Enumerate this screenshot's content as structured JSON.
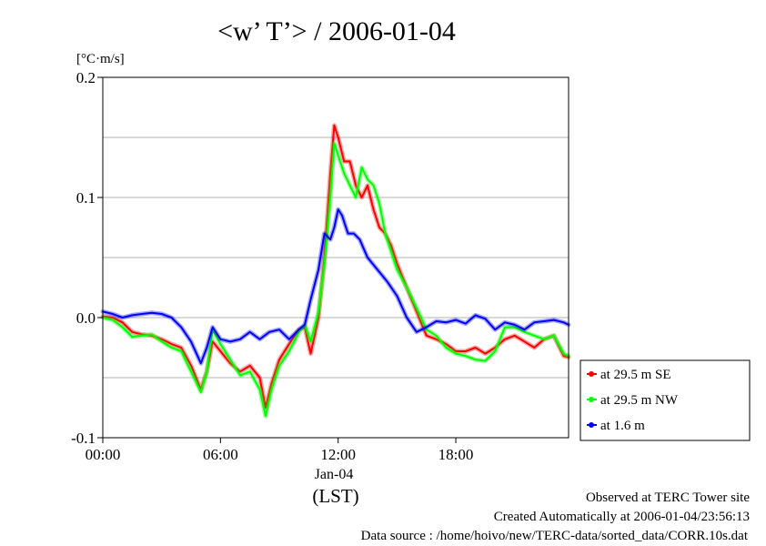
{
  "chart_data": {
    "type": "line",
    "title": "<w’ T’> / 2006-01-04",
    "unit_label": "[°C·m/s]",
    "xlabel": "(LST)",
    "x_date_label": "Jan-04",
    "xlim": [
      0,
      23.75
    ],
    "ylim": [
      -0.1,
      0.2
    ],
    "x_ticks": [
      {
        "value": 0,
        "label": "00:00"
      },
      {
        "value": 6,
        "label": "06:00"
      },
      {
        "value": 12,
        "label": "12:00"
      },
      {
        "value": 18,
        "label": "18:00"
      }
    ],
    "y_ticks": [
      {
        "value": -0.1,
        "label": "-0.1"
      },
      {
        "value": 0.0,
        "label": "0.0"
      },
      {
        "value": 0.1,
        "label": "0.1"
      },
      {
        "value": 0.2,
        "label": "0.2"
      }
    ],
    "y_gridlines": [
      -0.05,
      0.0,
      0.05,
      0.1,
      0.15
    ],
    "grid": true,
    "legend_position": "outside-right-bottom",
    "series": [
      {
        "name": "at 29.5 m SE",
        "color": "#ff0000",
        "points": [
          [
            0,
            0.001
          ],
          [
            0.5,
            0.0
          ],
          [
            1,
            -0.004
          ],
          [
            1.5,
            -0.012
          ],
          [
            2,
            -0.014
          ],
          [
            2.5,
            -0.015
          ],
          [
            3,
            -0.018
          ],
          [
            3.5,
            -0.022
          ],
          [
            4,
            -0.025
          ],
          [
            4.5,
            -0.04
          ],
          [
            5,
            -0.06
          ],
          [
            5.3,
            -0.045
          ],
          [
            5.6,
            -0.02
          ],
          [
            6,
            -0.028
          ],
          [
            6.5,
            -0.038
          ],
          [
            7,
            -0.045
          ],
          [
            7.5,
            -0.04
          ],
          [
            8,
            -0.05
          ],
          [
            8.3,
            -0.075
          ],
          [
            8.6,
            -0.055
          ],
          [
            9,
            -0.035
          ],
          [
            9.5,
            -0.022
          ],
          [
            10,
            -0.01
          ],
          [
            10.3,
            -0.008
          ],
          [
            10.6,
            -0.03
          ],
          [
            11,
            0.0
          ],
          [
            11.3,
            0.05
          ],
          [
            11.6,
            0.12
          ],
          [
            11.8,
            0.16
          ],
          [
            12,
            0.15
          ],
          [
            12.3,
            0.13
          ],
          [
            12.6,
            0.13
          ],
          [
            12.9,
            0.11
          ],
          [
            13.2,
            0.1
          ],
          [
            13.5,
            0.11
          ],
          [
            13.8,
            0.09
          ],
          [
            14.1,
            0.075
          ],
          [
            14.4,
            0.07
          ],
          [
            14.7,
            0.06
          ],
          [
            15,
            0.045
          ],
          [
            15.5,
            0.025
          ],
          [
            16,
            0.005
          ],
          [
            16.5,
            -0.015
          ],
          [
            17,
            -0.018
          ],
          [
            17.5,
            -0.022
          ],
          [
            18,
            -0.028
          ],
          [
            18.5,
            -0.028
          ],
          [
            19,
            -0.025
          ],
          [
            19.5,
            -0.03
          ],
          [
            20,
            -0.025
          ],
          [
            20.5,
            -0.018
          ],
          [
            21,
            -0.015
          ],
          [
            21.5,
            -0.02
          ],
          [
            22,
            -0.025
          ],
          [
            22.5,
            -0.018
          ],
          [
            23,
            -0.015
          ],
          [
            23.5,
            -0.032
          ],
          [
            23.75,
            -0.033
          ]
        ]
      },
      {
        "name": "at 29.5 m NW",
        "color": "#00ff00",
        "points": [
          [
            0,
            0.0
          ],
          [
            0.5,
            -0.002
          ],
          [
            1,
            -0.008
          ],
          [
            1.5,
            -0.016
          ],
          [
            2,
            -0.015
          ],
          [
            2.5,
            -0.014
          ],
          [
            3,
            -0.02
          ],
          [
            3.5,
            -0.025
          ],
          [
            4,
            -0.028
          ],
          [
            4.5,
            -0.045
          ],
          [
            5,
            -0.062
          ],
          [
            5.3,
            -0.045
          ],
          [
            5.6,
            -0.01
          ],
          [
            6,
            -0.022
          ],
          [
            6.5,
            -0.035
          ],
          [
            7,
            -0.048
          ],
          [
            7.5,
            -0.045
          ],
          [
            8,
            -0.06
          ],
          [
            8.3,
            -0.082
          ],
          [
            8.6,
            -0.06
          ],
          [
            9,
            -0.04
          ],
          [
            9.5,
            -0.028
          ],
          [
            10,
            -0.012
          ],
          [
            10.3,
            -0.006
          ],
          [
            10.6,
            -0.02
          ],
          [
            11,
            0.005
          ],
          [
            11.3,
            0.045
          ],
          [
            11.6,
            0.1
          ],
          [
            11.8,
            0.145
          ],
          [
            12,
            0.135
          ],
          [
            12.3,
            0.12
          ],
          [
            12.6,
            0.11
          ],
          [
            12.9,
            0.1
          ],
          [
            13.2,
            0.125
          ],
          [
            13.5,
            0.115
          ],
          [
            13.8,
            0.11
          ],
          [
            14.1,
            0.095
          ],
          [
            14.4,
            0.07
          ],
          [
            14.7,
            0.055
          ],
          [
            15,
            0.04
          ],
          [
            15.5,
            0.025
          ],
          [
            16,
            0.008
          ],
          [
            16.5,
            -0.01
          ],
          [
            17,
            -0.015
          ],
          [
            17.5,
            -0.025
          ],
          [
            18,
            -0.03
          ],
          [
            18.5,
            -0.032
          ],
          [
            19,
            -0.035
          ],
          [
            19.5,
            -0.036
          ],
          [
            20,
            -0.028
          ],
          [
            20.5,
            -0.008
          ],
          [
            21,
            -0.008
          ],
          [
            21.5,
            -0.012
          ],
          [
            22,
            -0.015
          ],
          [
            22.5,
            -0.018
          ],
          [
            23,
            -0.015
          ],
          [
            23.5,
            -0.03
          ],
          [
            23.75,
            -0.032
          ]
        ]
      },
      {
        "name": "at 1.6 m",
        "color": "#0000ff",
        "points": [
          [
            0,
            0.005
          ],
          [
            0.5,
            0.003
          ],
          [
            1,
            0.0
          ],
          [
            1.5,
            0.002
          ],
          [
            2,
            0.003
          ],
          [
            2.5,
            0.004
          ],
          [
            3,
            0.003
          ],
          [
            3.5,
            0.0
          ],
          [
            4,
            -0.008
          ],
          [
            4.5,
            -0.02
          ],
          [
            5,
            -0.038
          ],
          [
            5.3,
            -0.025
          ],
          [
            5.6,
            -0.008
          ],
          [
            6,
            -0.018
          ],
          [
            6.5,
            -0.02
          ],
          [
            7,
            -0.018
          ],
          [
            7.5,
            -0.012
          ],
          [
            8,
            -0.018
          ],
          [
            8.5,
            -0.012
          ],
          [
            9,
            -0.01
          ],
          [
            9.5,
            -0.018
          ],
          [
            10,
            -0.01
          ],
          [
            10.3,
            -0.006
          ],
          [
            10.6,
            0.015
          ],
          [
            11,
            0.04
          ],
          [
            11.3,
            0.07
          ],
          [
            11.6,
            0.065
          ],
          [
            11.8,
            0.075
          ],
          [
            12,
            0.09
          ],
          [
            12.2,
            0.085
          ],
          [
            12.5,
            0.07
          ],
          [
            12.8,
            0.07
          ],
          [
            13.1,
            0.065
          ],
          [
            13.5,
            0.05
          ],
          [
            14,
            0.04
          ],
          [
            14.5,
            0.03
          ],
          [
            15,
            0.018
          ],
          [
            15.5,
            0.0
          ],
          [
            16,
            -0.012
          ],
          [
            16.5,
            -0.008
          ],
          [
            17,
            -0.003
          ],
          [
            17.5,
            -0.004
          ],
          [
            18,
            -0.002
          ],
          [
            18.5,
            -0.005
          ],
          [
            19,
            0.002
          ],
          [
            19.5,
            -0.001
          ],
          [
            20,
            -0.01
          ],
          [
            20.5,
            -0.004
          ],
          [
            21,
            -0.006
          ],
          [
            21.5,
            -0.01
          ],
          [
            22,
            -0.004
          ],
          [
            22.5,
            -0.003
          ],
          [
            23,
            -0.002
          ],
          [
            23.5,
            -0.004
          ],
          [
            23.75,
            -0.006
          ]
        ]
      }
    ],
    "footer": {
      "line1": "Observed at TERC Tower site",
      "line2": "Created Automatically at 2006-01-04/23:56:13",
      "line3": "Data source : /home/hoivo/new/TERC-data/sorted_data/CORR.10s.dat"
    }
  }
}
